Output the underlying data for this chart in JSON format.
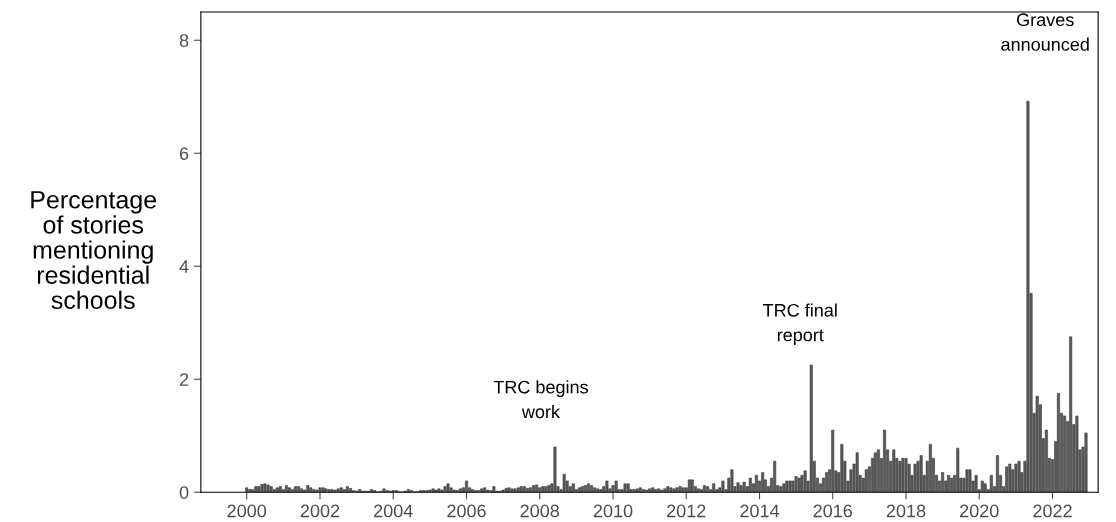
{
  "chart_data": {
    "type": "bar",
    "ylabel": "Percentage\nof stories\nmentioning\nresidential\nschools",
    "color": "#595959",
    "x": [
      "2000-01",
      "2000-02",
      "2000-03",
      "2000-04",
      "2000-05",
      "2000-06",
      "2000-07",
      "2000-08",
      "2000-09",
      "2000-10",
      "2000-11",
      "2000-12",
      "2001-01",
      "2001-02",
      "2001-03",
      "2001-04",
      "2001-05",
      "2001-06",
      "2001-07",
      "2001-08",
      "2001-09",
      "2001-10",
      "2001-11",
      "2001-12",
      "2002-01",
      "2002-02",
      "2002-03",
      "2002-04",
      "2002-05",
      "2002-06",
      "2002-07",
      "2002-08",
      "2002-09",
      "2002-10",
      "2002-11",
      "2002-12",
      "2003-01",
      "2003-02",
      "2003-03",
      "2003-04",
      "2003-05",
      "2003-06",
      "2003-07",
      "2003-08",
      "2003-09",
      "2003-10",
      "2003-11",
      "2003-12",
      "2004-01",
      "2004-02",
      "2004-03",
      "2004-04",
      "2004-05",
      "2004-06",
      "2004-07",
      "2004-08",
      "2004-09",
      "2004-10",
      "2004-11",
      "2004-12",
      "2005-01",
      "2005-02",
      "2005-03",
      "2005-04",
      "2005-05",
      "2005-06",
      "2005-07",
      "2005-08",
      "2005-09",
      "2005-10",
      "2005-11",
      "2005-12",
      "2006-01",
      "2006-02",
      "2006-03",
      "2006-04",
      "2006-05",
      "2006-06",
      "2006-07",
      "2006-08",
      "2006-09",
      "2006-10",
      "2006-11",
      "2006-12",
      "2007-01",
      "2007-02",
      "2007-03",
      "2007-04",
      "2007-05",
      "2007-06",
      "2007-07",
      "2007-08",
      "2007-09",
      "2007-10",
      "2007-11",
      "2007-12",
      "2008-01",
      "2008-02",
      "2008-03",
      "2008-04",
      "2008-05",
      "2008-06",
      "2008-07",
      "2008-08",
      "2008-09",
      "2008-10",
      "2008-11",
      "2008-12",
      "2009-01",
      "2009-02",
      "2009-03",
      "2009-04",
      "2009-05",
      "2009-06",
      "2009-07",
      "2009-08",
      "2009-09",
      "2009-10",
      "2009-11",
      "2009-12",
      "2010-01",
      "2010-02",
      "2010-03",
      "2010-04",
      "2010-05",
      "2010-06",
      "2010-07",
      "2010-08",
      "2010-09",
      "2010-10",
      "2010-11",
      "2010-12",
      "2011-01",
      "2011-02",
      "2011-03",
      "2011-04",
      "2011-05",
      "2011-06",
      "2011-07",
      "2011-08",
      "2011-09",
      "2011-10",
      "2011-11",
      "2011-12",
      "2012-01",
      "2012-02",
      "2012-03",
      "2012-04",
      "2012-05",
      "2012-06",
      "2012-07",
      "2012-08",
      "2012-09",
      "2012-10",
      "2012-11",
      "2012-12",
      "2013-01",
      "2013-02",
      "2013-03",
      "2013-04",
      "2013-05",
      "2013-06",
      "2013-07",
      "2013-08",
      "2013-09",
      "2013-10",
      "2013-11",
      "2013-12",
      "2014-01",
      "2014-02",
      "2014-03",
      "2014-04",
      "2014-05",
      "2014-06",
      "2014-07",
      "2014-08",
      "2014-09",
      "2014-10",
      "2014-11",
      "2014-12",
      "2015-01",
      "2015-02",
      "2015-03",
      "2015-04",
      "2015-05",
      "2015-06",
      "2015-07",
      "2015-08",
      "2015-09",
      "2015-10",
      "2015-11",
      "2015-12",
      "2016-01",
      "2016-02",
      "2016-03",
      "2016-04",
      "2016-05",
      "2016-06",
      "2016-07",
      "2016-08",
      "2016-09",
      "2016-10",
      "2016-11",
      "2016-12",
      "2017-01",
      "2017-02",
      "2017-03",
      "2017-04",
      "2017-05",
      "2017-06",
      "2017-07",
      "2017-08",
      "2017-09",
      "2017-10",
      "2017-11",
      "2017-12",
      "2018-01",
      "2018-02",
      "2018-03",
      "2018-04",
      "2018-05",
      "2018-06",
      "2018-07",
      "2018-08",
      "2018-09",
      "2018-10",
      "2018-11",
      "2018-12",
      "2019-01",
      "2019-02",
      "2019-03",
      "2019-04",
      "2019-05",
      "2019-06",
      "2019-07",
      "2019-08",
      "2019-09",
      "2019-10",
      "2019-11",
      "2019-12",
      "2020-01",
      "2020-02",
      "2020-03",
      "2020-04",
      "2020-05",
      "2020-06",
      "2020-07",
      "2020-08",
      "2020-09",
      "2020-10",
      "2020-11",
      "2020-12",
      "2021-01",
      "2021-02",
      "2021-03",
      "2021-04",
      "2021-05",
      "2021-06",
      "2021-07",
      "2021-08",
      "2021-09",
      "2021-10",
      "2021-11",
      "2021-12",
      "2022-01",
      "2022-02",
      "2022-03",
      "2022-04",
      "2022-05",
      "2022-06",
      "2022-07",
      "2022-08",
      "2022-09",
      "2022-10",
      "2022-11",
      "2022-12"
    ],
    "values": [
      0.08,
      0.05,
      0.05,
      0.1,
      0.1,
      0.14,
      0.15,
      0.13,
      0.1,
      0.05,
      0.08,
      0.1,
      0.05,
      0.12,
      0.08,
      0.05,
      0.1,
      0.1,
      0.06,
      0.04,
      0.12,
      0.08,
      0.05,
      0.04,
      0.08,
      0.08,
      0.06,
      0.05,
      0.05,
      0.04,
      0.06,
      0.08,
      0.05,
      0.1,
      0.07,
      0.03,
      0.02,
      0.05,
      0.02,
      0.02,
      0.02,
      0.05,
      0.03,
      0.01,
      0.02,
      0.06,
      0.03,
      0.02,
      0.03,
      0.03,
      0.01,
      0.01,
      0.02,
      0.05,
      0.03,
      0.01,
      0.01,
      0.03,
      0.03,
      0.03,
      0.04,
      0.06,
      0.04,
      0.06,
      0.04,
      0.1,
      0.15,
      0.08,
      0.04,
      0.03,
      0.06,
      0.08,
      0.2,
      0.08,
      0.05,
      0.03,
      0.03,
      0.06,
      0.08,
      0.04,
      0.03,
      0.1,
      0.02,
      0.02,
      0.04,
      0.07,
      0.08,
      0.06,
      0.06,
      0.08,
      0.1,
      0.1,
      0.07,
      0.08,
      0.12,
      0.13,
      0.08,
      0.1,
      0.1,
      0.12,
      0.15,
      0.8,
      0.1,
      0.05,
      0.32,
      0.2,
      0.1,
      0.15,
      0.05,
      0.08,
      0.1,
      0.12,
      0.15,
      0.12,
      0.08,
      0.06,
      0.05,
      0.1,
      0.2,
      0.06,
      0.12,
      0.2,
      0.05,
      0.05,
      0.15,
      0.15,
      0.05,
      0.05,
      0.06,
      0.08,
      0.05,
      0.04,
      0.06,
      0.08,
      0.05,
      0.06,
      0.04,
      0.06,
      0.1,
      0.08,
      0.06,
      0.08,
      0.1,
      0.08,
      0.08,
      0.22,
      0.22,
      0.1,
      0.06,
      0.05,
      0.12,
      0.1,
      0.05,
      0.15,
      0.05,
      0.08,
      0.2,
      0.05,
      0.25,
      0.4,
      0.1,
      0.17,
      0.12,
      0.18,
      0.1,
      0.25,
      0.15,
      0.3,
      0.2,
      0.35,
      0.22,
      0.1,
      0.25,
      0.55,
      0.12,
      0.1,
      0.15,
      0.2,
      0.2,
      0.2,
      0.28,
      0.25,
      0.3,
      0.38,
      0.2,
      2.25,
      0.55,
      0.25,
      0.15,
      0.25,
      0.35,
      0.4,
      1.1,
      0.38,
      0.35,
      0.85,
      0.55,
      0.2,
      0.4,
      0.5,
      0.7,
      0.3,
      0.25,
      0.4,
      0.45,
      0.6,
      0.7,
      0.75,
      0.6,
      1.1,
      0.75,
      0.55,
      0.75,
      0.6,
      0.55,
      0.6,
      0.6,
      0.5,
      0.3,
      0.5,
      0.55,
      0.65,
      0.3,
      0.55,
      0.85,
      0.6,
      0.3,
      0.2,
      0.35,
      0.2,
      0.3,
      0.25,
      0.3,
      0.78,
      0.25,
      0.25,
      0.4,
      0.4,
      0.2,
      0.3,
      0.05,
      0.2,
      0.15,
      0.05,
      0.3,
      0.1,
      0.65,
      0.3,
      0.1,
      0.45,
      0.5,
      0.4,
      0.5,
      0.55,
      0.35,
      0.55,
      6.92,
      3.52,
      1.4,
      1.7,
      1.55,
      0.95,
      1.1,
      0.6,
      0.58,
      0.9,
      1.75,
      1.4,
      1.35,
      1.25,
      2.75,
      1.2,
      1.35,
      0.75,
      0.8,
      1.05
    ],
    "xlim": [
      "1998-10",
      "2023-04"
    ],
    "xticks": [
      "2000",
      "2002",
      "2004",
      "2006",
      "2008",
      "2010",
      "2012",
      "2014",
      "2016",
      "2018",
      "2020",
      "2022"
    ],
    "ylim": [
      0,
      8.5
    ],
    "yticks": [
      0,
      2,
      4,
      6,
      8
    ],
    "annotations": [
      "TRC begins\nwork",
      "TRC final\nreport",
      "Graves\nannounced"
    ]
  }
}
